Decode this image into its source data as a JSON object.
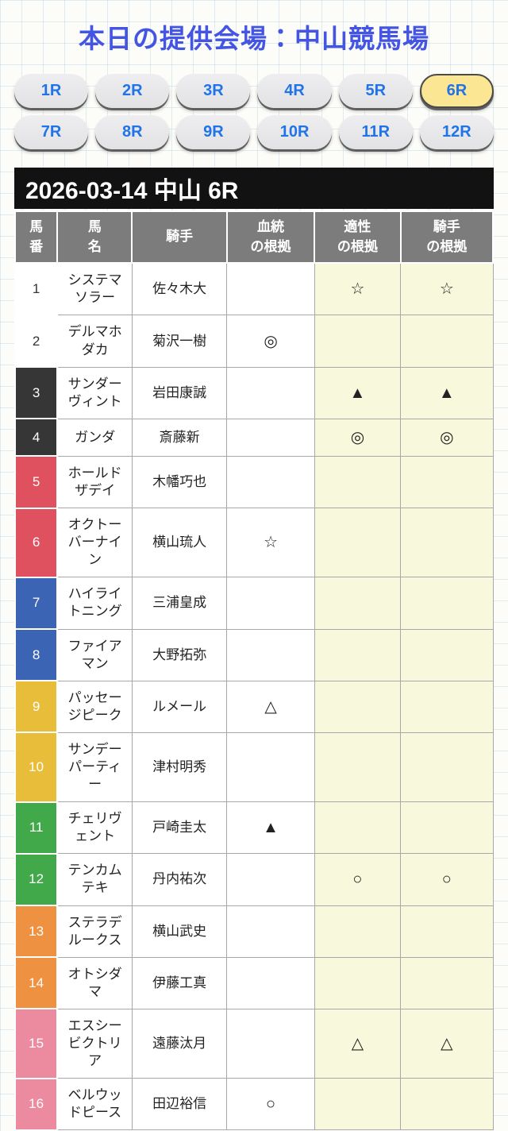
{
  "page_title": "本日の提供会場：中山競馬場",
  "race_nav": {
    "buttons": [
      {
        "label": "1R",
        "active": false
      },
      {
        "label": "2R",
        "active": false
      },
      {
        "label": "3R",
        "active": false
      },
      {
        "label": "4R",
        "active": false
      },
      {
        "label": "5R",
        "active": false
      },
      {
        "label": "6R",
        "active": true
      },
      {
        "label": "7R",
        "active": false
      },
      {
        "label": "8R",
        "active": false
      },
      {
        "label": "9R",
        "active": false
      },
      {
        "label": "10R",
        "active": false
      },
      {
        "label": "11R",
        "active": false
      },
      {
        "label": "12R",
        "active": false
      }
    ]
  },
  "race_header": "2026-03-14 中山 6R",
  "table": {
    "columns": [
      "馬\n番",
      "馬\n名",
      "騎手",
      "血統\nの根拠",
      "適性\nの根拠",
      "騎手\nの根拠"
    ],
    "rows": [
      {
        "num": "1",
        "name": "システマ\nソラー",
        "jockey": "佐々木大",
        "pedigree": "",
        "aptitude": "☆",
        "jockey_mark": "☆",
        "bracket_bg": "#ffffff",
        "bracket_fg": "#333333"
      },
      {
        "num": "2",
        "name": "デルマホ\nダカ",
        "jockey": "菊沢一樹",
        "pedigree": "◎",
        "aptitude": "",
        "jockey_mark": "",
        "bracket_bg": "#ffffff",
        "bracket_fg": "#333333"
      },
      {
        "num": "3",
        "name": "サンダー\nヴィント",
        "jockey": "岩田康誠",
        "pedigree": "",
        "aptitude": "▲",
        "jockey_mark": "▲",
        "bracket_bg": "#363636",
        "bracket_fg": "#ffffff"
      },
      {
        "num": "4",
        "name": "ガンダ",
        "jockey": "斎藤新",
        "pedigree": "",
        "aptitude": "◎",
        "jockey_mark": "◎",
        "bracket_bg": "#363636",
        "bracket_fg": "#ffffff"
      },
      {
        "num": "5",
        "name": "ホールド\nザデイ",
        "jockey": "木幡巧也",
        "pedigree": "",
        "aptitude": "",
        "jockey_mark": "",
        "bracket_bg": "#e0515f",
        "bracket_fg": "#ffffff"
      },
      {
        "num": "6",
        "name": "オクトー\nバーナイ\nン",
        "jockey": "横山琉人",
        "pedigree": "☆",
        "aptitude": "",
        "jockey_mark": "",
        "bracket_bg": "#e0515f",
        "bracket_fg": "#ffffff"
      },
      {
        "num": "7",
        "name": "ハイライ\nトニング",
        "jockey": "三浦皇成",
        "pedigree": "",
        "aptitude": "",
        "jockey_mark": "",
        "bracket_bg": "#3c64b4",
        "bracket_fg": "#ffffff"
      },
      {
        "num": "8",
        "name": "ファイア\nマン",
        "jockey": "大野拓弥",
        "pedigree": "",
        "aptitude": "",
        "jockey_mark": "",
        "bracket_bg": "#3c64b4",
        "bracket_fg": "#ffffff"
      },
      {
        "num": "9",
        "name": "パッセー\nジピーク",
        "jockey": "ルメール",
        "pedigree": "△",
        "aptitude": "",
        "jockey_mark": "",
        "bracket_bg": "#e7bd3a",
        "bracket_fg": "#ffffff"
      },
      {
        "num": "10",
        "name": "サンデー\nパーティ\nー",
        "jockey": "津村明秀",
        "pedigree": "",
        "aptitude": "",
        "jockey_mark": "",
        "bracket_bg": "#e7bd3a",
        "bracket_fg": "#ffffff"
      },
      {
        "num": "11",
        "name": "チェリヴ\nェント",
        "jockey": "戸崎圭太",
        "pedigree": "▲",
        "aptitude": "",
        "jockey_mark": "",
        "bracket_bg": "#42a94a",
        "bracket_fg": "#ffffff"
      },
      {
        "num": "12",
        "name": "テンカム\nテキ",
        "jockey": "丹内祐次",
        "pedigree": "",
        "aptitude": "○",
        "jockey_mark": "○",
        "bracket_bg": "#42a94a",
        "bracket_fg": "#ffffff"
      },
      {
        "num": "13",
        "name": "ステラデ\nルークス",
        "jockey": "横山武史",
        "pedigree": "",
        "aptitude": "",
        "jockey_mark": "",
        "bracket_bg": "#ee9140",
        "bracket_fg": "#ffffff"
      },
      {
        "num": "14",
        "name": "オトシダ\nマ",
        "jockey": "伊藤工真",
        "pedigree": "",
        "aptitude": "",
        "jockey_mark": "",
        "bracket_bg": "#ee9140",
        "bracket_fg": "#ffffff"
      },
      {
        "num": "15",
        "name": "エスシー\nビクトリ\nア",
        "jockey": "遠藤汰月",
        "pedigree": "",
        "aptitude": "△",
        "jockey_mark": "△",
        "bracket_bg": "#ec8ba0",
        "bracket_fg": "#ffffff"
      },
      {
        "num": "16",
        "name": "ベルウッ\nドピース",
        "jockey": "田辺裕信",
        "pedigree": "○",
        "aptitude": "",
        "jockey_mark": "",
        "bracket_bg": "#ec8ba0",
        "bracket_fg": "#ffffff"
      }
    ]
  },
  "colors": {
    "title_blue": "#4355e2",
    "button_text_blue": "#2174e8",
    "active_button_yellow": "#fbe694",
    "header_bar_black": "#121212",
    "table_header_gray": "#7c7c7c",
    "highlight_cream": "#f8f8dc"
  }
}
